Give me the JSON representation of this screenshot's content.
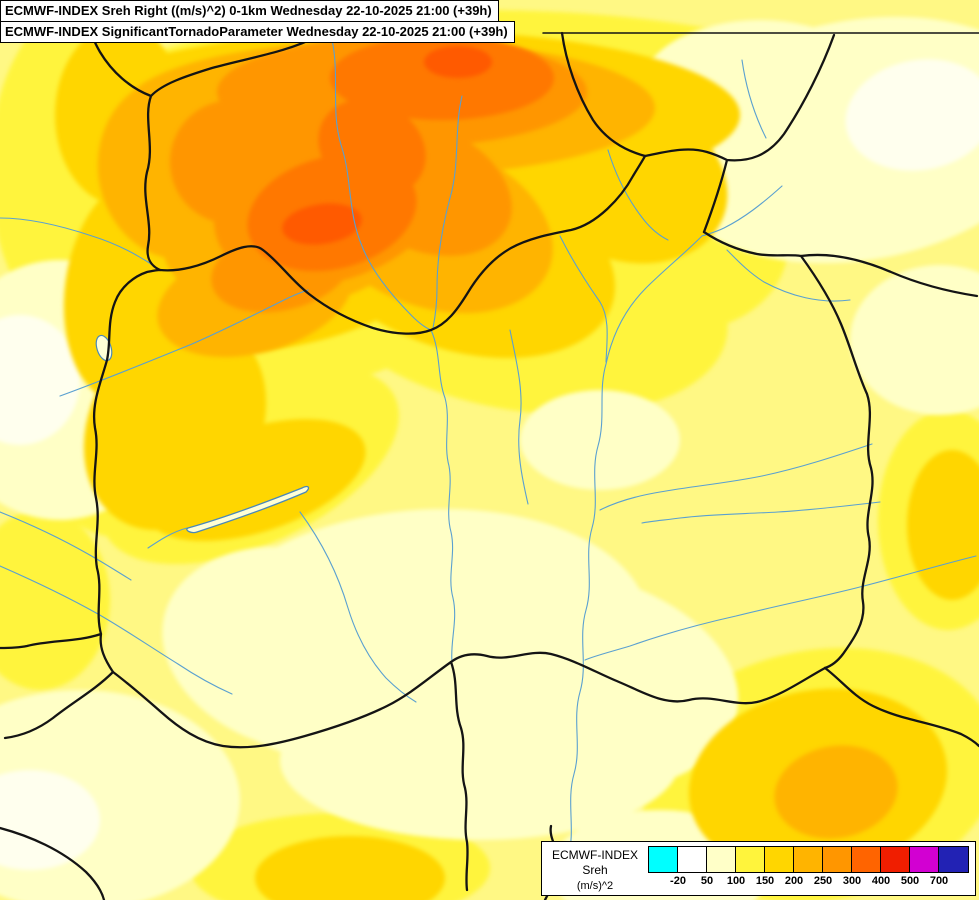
{
  "titles": {
    "primary": "ECMWF-INDEX Sreh Right ((m/s)^2) 0-1km Wednesday 22-10-2025 21:00 (+39h)",
    "secondary": "ECMWF-INDEX SignificantTornadoParameter Wednesday 22-10-2025 21:00 (+39h)"
  },
  "legend": {
    "model": "ECMWF-INDEX",
    "parameter": "Sreh",
    "units": "(m/s)^2",
    "scale_colors": [
      "#00FFFF",
      "#FFFFFF",
      "#FFFFC8",
      "#FFF43C",
      "#FFD600",
      "#FFB400",
      "#FF9600",
      "#FF6400",
      "#F01E00",
      "#D200D2",
      "#2222B4"
    ],
    "ticks": [
      "-20",
      "50",
      "100",
      "150",
      "200",
      "250",
      "300",
      "400",
      "500",
      "700"
    ]
  },
  "map_palette": {
    "base": "#FFF884",
    "pale": "#FFFFC6",
    "near_white": "#FFFFEE",
    "yellow": "#FFF43C",
    "gold": "#FFD600",
    "amber": "#FFB400",
    "orange": "#FF9600",
    "dark_orange": "#FF7800",
    "red_orange": "#FF5A00",
    "border": "#141414",
    "river": "#5AA0D0"
  }
}
